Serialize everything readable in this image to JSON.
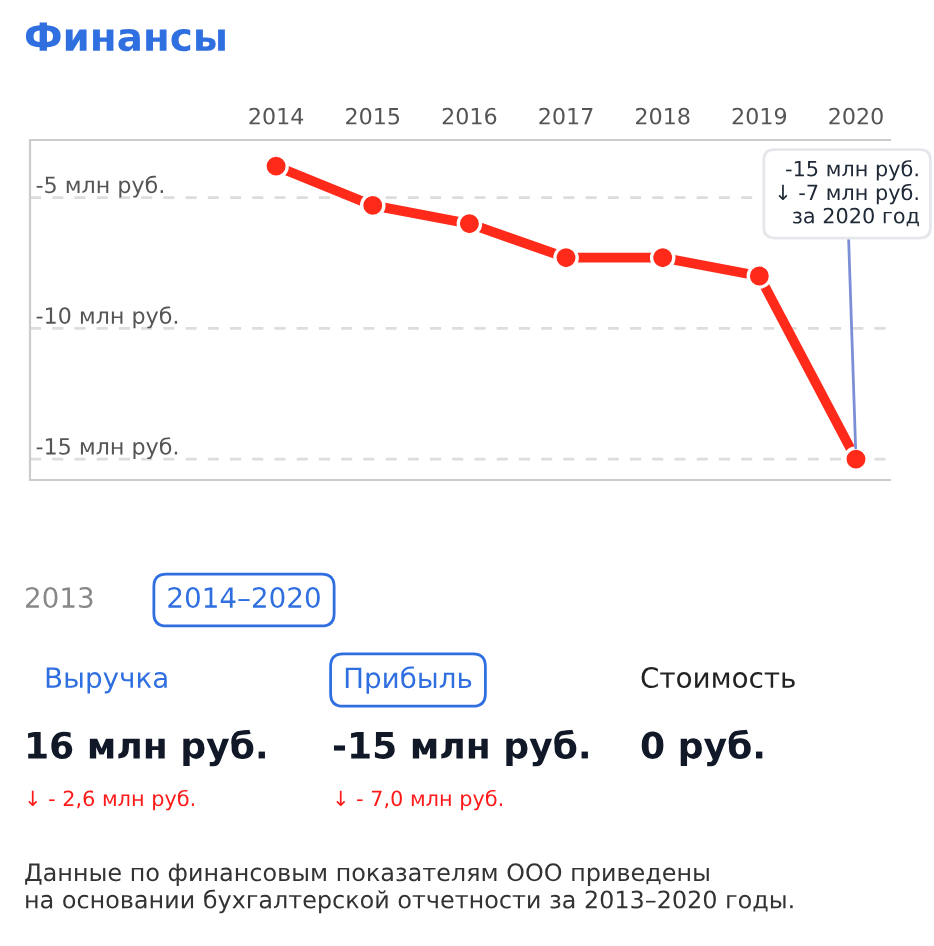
{
  "chart_data": {
    "type": "line",
    "title": "Финансы",
    "categories": [
      "2014",
      "2015",
      "2016",
      "2017",
      "2018",
      "2019",
      "2020"
    ],
    "series": [
      {
        "color": "#ff2a1a",
        "values": [
          -3.8,
          -5.3,
          -6.0,
          -7.3,
          -7.3,
          -8.0,
          -15.0
        ]
      }
    ],
    "ylim": [
      -15.8,
      -2.8
    ],
    "yticks": [
      {
        "value": -5,
        "label": "-5 млн руб."
      },
      {
        "value": -10,
        "label": "-10 млн руб."
      },
      {
        "value": -15,
        "label": "-15 млн руб."
      }
    ],
    "grid": "y",
    "marker": "circle",
    "line_style": "solid",
    "annotations": [
      {
        "text": "-15 млн руб.\n↓ -7 млн руб.\nза 2020 год",
        "x": "2020",
        "y": -15.0
      },
      "2013",
      "2014–2020",
      "Выручка",
      "Прибыль",
      "Стоимость",
      "16 млн руб.",
      "-15 млн руб.",
      "0 руб.",
      "↓ - 2,6 млн руб.",
      "↓ - 7,0 млн руб.",
      "Данные по финансовым показателям ООО приведены\nна основании бухгалтерской отчетности за 2013–2020 годы."
    ]
  }
}
